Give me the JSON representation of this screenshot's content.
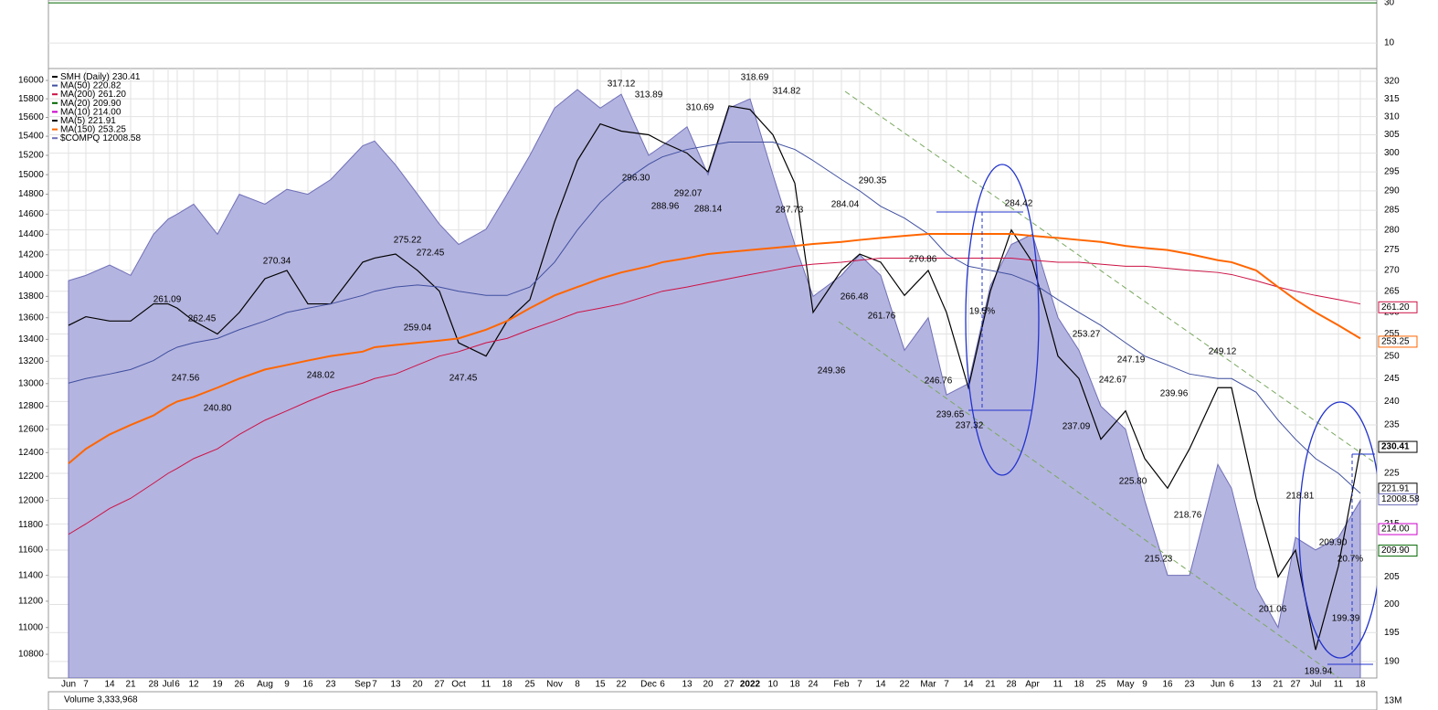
{
  "chart_data": {
    "type": "line",
    "log_scale": true,
    "grid": true,
    "categories": [
      "Jun",
      "7",
      "14",
      "21",
      "28",
      "Jul",
      "6",
      "12",
      "19",
      "26",
      "Aug",
      "9",
      "16",
      "23",
      "Sep",
      "7",
      "13",
      "20",
      "27",
      "Oct",
      "11",
      "18",
      "25",
      "Nov",
      "8",
      "15",
      "22",
      "Dec",
      "6",
      "13",
      "20",
      "27",
      "2022",
      "10",
      "18",
      "24",
      "Feb",
      "7",
      "14",
      "22",
      "Mar",
      "7",
      "14",
      "21",
      "28",
      "Apr",
      "11",
      "18",
      "25",
      "May",
      "9",
      "16",
      "23",
      "Jun",
      "6",
      "13",
      "21",
      "27",
      "Jul",
      "11",
      "18"
    ],
    "ylim": [
      187.2,
      323.7
    ],
    "yticks": [
      190,
      195,
      200,
      205,
      210,
      215,
      220,
      225,
      230,
      235,
      240,
      245,
      250,
      255,
      260,
      265,
      270,
      275,
      280,
      285,
      290,
      295,
      300,
      305,
      310,
      315,
      320
    ],
    "y2lim": [
      10626,
      16131
    ],
    "y2ticks": [
      10800,
      11000,
      11200,
      11400,
      11600,
      11800,
      12000,
      12200,
      12400,
      12600,
      12800,
      13000,
      13200,
      13400,
      13600,
      13800,
      14000,
      14200,
      14400,
      14600,
      14800,
      15000,
      15200,
      15400,
      15600,
      15800,
      16000
    ],
    "series": [
      {
        "name": "SMH (Daily)",
        "color": "#000000",
        "last": 230.41,
        "last_label": "230.41",
        "values": [
          257,
          259,
          258,
          258,
          262,
          262,
          261,
          258,
          255,
          260,
          268,
          270,
          262,
          262,
          272,
          273,
          274,
          270,
          265,
          253,
          250,
          258,
          263,
          282,
          298,
          308,
          306,
          305,
          303,
          300,
          295,
          313,
          312,
          305,
          292,
          260,
          270,
          274,
          272,
          264,
          270,
          260,
          243,
          265,
          280,
          272,
          250,
          245,
          232,
          238,
          228,
          222,
          230,
          243,
          243,
          220,
          205,
          210,
          192,
          207,
          230
        ]
      },
      {
        "name": "MA(50)",
        "color": "#3f4f9f",
        "last": 220.82,
        "last_label": "220.82",
        "values": [
          244,
          245,
          246,
          247,
          249,
          251,
          252,
          253,
          254,
          256,
          258,
          260,
          261,
          262,
          264,
          265,
          266,
          266.5,
          266,
          265,
          264,
          264,
          266,
          272,
          280,
          287,
          292,
          297,
          299,
          301,
          302,
          303,
          303,
          303,
          301,
          298,
          293,
          290,
          286,
          283,
          279,
          274,
          271,
          270,
          269,
          267,
          263,
          260,
          257,
          253,
          250,
          248,
          246,
          245,
          245,
          242,
          236,
          232,
          228,
          225,
          221
        ]
      },
      {
        "name": "MA(200)",
        "color": "#cc1144",
        "last": 261.2,
        "last_label": "261.20",
        "values": [
          213,
          215,
          218,
          220,
          223,
          225,
          226,
          228,
          230,
          233,
          236,
          238,
          240,
          242,
          244,
          245,
          246,
          248,
          250,
          251,
          253,
          254,
          256,
          258,
          260,
          261,
          262,
          264,
          265,
          266,
          267,
          268,
          269,
          270,
          271,
          271.5,
          272,
          272.5,
          273,
          273,
          273,
          273,
          273,
          273,
          273,
          272.5,
          272,
          272,
          271.5,
          271,
          271,
          270.5,
          270,
          269.5,
          269,
          267.5,
          266,
          265,
          264,
          263,
          262
        ]
      },
      {
        "name": "MA(20)",
        "color": "#006600",
        "last": 209.9,
        "last_label": "209.90"
      },
      {
        "name": "MA(10)",
        "color": "#cc00cc",
        "last": 214,
        "last_label": "214.00"
      },
      {
        "name": "MA(5)",
        "color": "#000000",
        "last": 221.91,
        "last_label": "221.91"
      },
      {
        "name": "MA(150)",
        "color": "#ff6600",
        "last": 253.25,
        "last_label": "253.25",
        "values": [
          227,
          230,
          233,
          235,
          237,
          239,
          240,
          241,
          243,
          245,
          247,
          248,
          249,
          250,
          251,
          252,
          252.5,
          253,
          253.5,
          254,
          256,
          258,
          261,
          264,
          266,
          268,
          269.5,
          271,
          272,
          273,
          274,
          274.5,
          275,
          275.5,
          276,
          276.5,
          277,
          277.5,
          278,
          278.5,
          279,
          279,
          279,
          279,
          279,
          278.5,
          278,
          277.5,
          277,
          276,
          275.5,
          275,
          274,
          272.5,
          272,
          270,
          266,
          263,
          260,
          257,
          254
        ]
      },
      {
        "name": "$COMPQ",
        "color": "#6f6fb8",
        "fill": "#b4b4e0",
        "axis": "y2",
        "last": 12008.58,
        "last_label": "12008.58",
        "values": [
          13950,
          14000,
          14100,
          14000,
          14400,
          14550,
          14600,
          14700,
          14400,
          14800,
          14700,
          14850,
          14800,
          14950,
          15300,
          15350,
          15100,
          14800,
          14500,
          14300,
          14450,
          14800,
          15200,
          15700,
          15900,
          15700,
          15850,
          15200,
          15300,
          15500,
          15000,
          15700,
          15800,
          15000,
          14300,
          13800,
          14000,
          14200,
          14000,
          13300,
          13600,
          12900,
          13000,
          13900,
          14300,
          14400,
          13600,
          13300,
          12800,
          12600,
          12000,
          11400,
          11400,
          12300,
          12100,
          11300,
          11000,
          11700,
          11600,
          11700,
          12000
        ]
      }
    ],
    "annotations": [
      {
        "value": 261.09,
        "label": "261.09"
      },
      {
        "value": 262.45,
        "label": "262.45"
      },
      {
        "value": 247.56,
        "label": "247.56"
      },
      {
        "value": 240.8,
        "label": "240.80"
      },
      {
        "value": 270.34,
        "label": "270.34"
      },
      {
        "value": 248.02,
        "label": "248.02"
      },
      {
        "value": 275.22,
        "label": "275.22"
      },
      {
        "value": 272.45,
        "label": "272.45"
      },
      {
        "value": 259.04,
        "label": "259.04"
      },
      {
        "value": 247.45,
        "label": "247.45"
      },
      {
        "value": 317.12,
        "label": "317.12"
      },
      {
        "value": 313.89,
        "label": "313.89"
      },
      {
        "value": 310.69,
        "label": "310.69"
      },
      {
        "value": 296.3,
        "label": "296.30"
      },
      {
        "value": 288.96,
        "label": "288.96"
      },
      {
        "value": 292.07,
        "label": "292.07"
      },
      {
        "value": 288.14,
        "label": "288.14"
      },
      {
        "value": 318.69,
        "label": "318.69"
      },
      {
        "value": 314.82,
        "label": "314.82"
      },
      {
        "value": 287.73,
        "label": "287.73"
      },
      {
        "value": 290.35,
        "label": "290.35"
      },
      {
        "value": 284.04,
        "label": "284.04"
      },
      {
        "value": 266.48,
        "label": "266.48"
      },
      {
        "value": 261.76,
        "label": "261.76"
      },
      {
        "value": 249.36,
        "label": "249.36"
      },
      {
        "value": 246.76,
        "label": "246.76"
      },
      {
        "value": 270.86,
        "label": "270.86"
      },
      {
        "value": 284.42,
        "label": "284.42"
      },
      {
        "value": 239.65,
        "label": "239.65"
      },
      {
        "value": 237.32,
        "label": "237.32"
      },
      {
        "value": 19.5,
        "label": "19.5%"
      },
      {
        "value": 253.27,
        "label": "253.27"
      },
      {
        "value": 247.19,
        "label": "247.19"
      },
      {
        "value": 242.67,
        "label": "242.67"
      },
      {
        "value": 239.96,
        "label": "239.96"
      },
      {
        "value": 237.09,
        "label": "237.09"
      },
      {
        "value": 225.8,
        "label": "225.80"
      },
      {
        "value": 218.76,
        "label": "218.76"
      },
      {
        "value": 215.23,
        "label": "215.23"
      },
      {
        "value": 249.12,
        "label": "249.12"
      },
      {
        "value": 218.81,
        "label": "218.81"
      },
      {
        "value": 209.9,
        "label": "209.90"
      },
      {
        "value": 20.7,
        "label": "20.7%"
      },
      {
        "value": 201.06,
        "label": "201.06"
      },
      {
        "value": 199.39,
        "label": "199.39"
      },
      {
        "value": 189.94,
        "label": "189.94"
      }
    ],
    "top_panel": {
      "ylim": [
        -2.7,
        31.4
      ],
      "yticks": [
        30,
        10
      ],
      "color": "#006600"
    },
    "volume_panel": {
      "label": "Volume 3,333,968",
      "ylim": [
        0,
        26000000
      ],
      "yticks": [
        {
          "value": 13000000,
          "label": "13M"
        }
      ]
    }
  }
}
